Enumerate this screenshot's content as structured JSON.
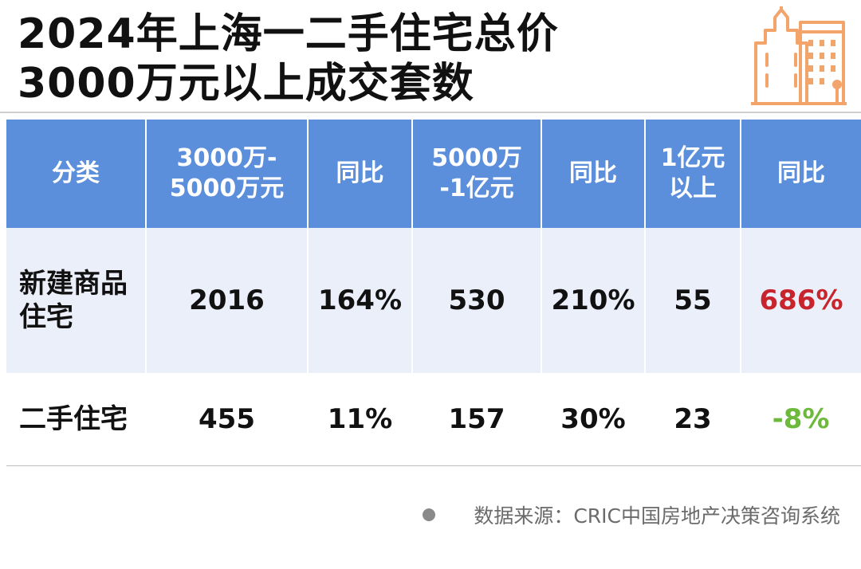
{
  "title": {
    "line1": "2024年上海一二手住宅总价",
    "line2": "3000万元以上成交套数"
  },
  "logo": {
    "icon": "building-icon",
    "color": "#f2a46a"
  },
  "table": {
    "headers": [
      {
        "line1": "分类",
        "line2": ""
      },
      {
        "line1": "3000万-",
        "line2": "5000万元"
      },
      {
        "line1": "同比",
        "line2": ""
      },
      {
        "line1": "5000万",
        "line2": "-1亿元"
      },
      {
        "line1": "同比",
        "line2": ""
      },
      {
        "line1": "1亿元",
        "line2": "以上"
      },
      {
        "line1": "同比",
        "line2": ""
      }
    ],
    "rows": [
      {
        "category_line1": "新建商品",
        "category_line2": "住宅",
        "range_3000_5000": "2016",
        "yoy_1": "164%",
        "range_5000_1yi": "530",
        "yoy_2": "210%",
        "range_1yi_plus": "55",
        "yoy_3": "686%"
      },
      {
        "category_line1": "二手住宅",
        "category_line2": "",
        "range_3000_5000": "455",
        "yoy_1": "11%",
        "range_5000_1yi": "157",
        "yoy_2": "30%",
        "range_1yi_plus": "23",
        "yoy_3": "-8%"
      }
    ]
  },
  "colors": {
    "header_bg": "#5b8fdb",
    "row_alt_bg": "#ebeffa",
    "positive_highlight": "#c8242b",
    "negative_highlight": "#6cb93c"
  },
  "source": "数据来源：CRIC中国房地产决策咨询系统"
}
